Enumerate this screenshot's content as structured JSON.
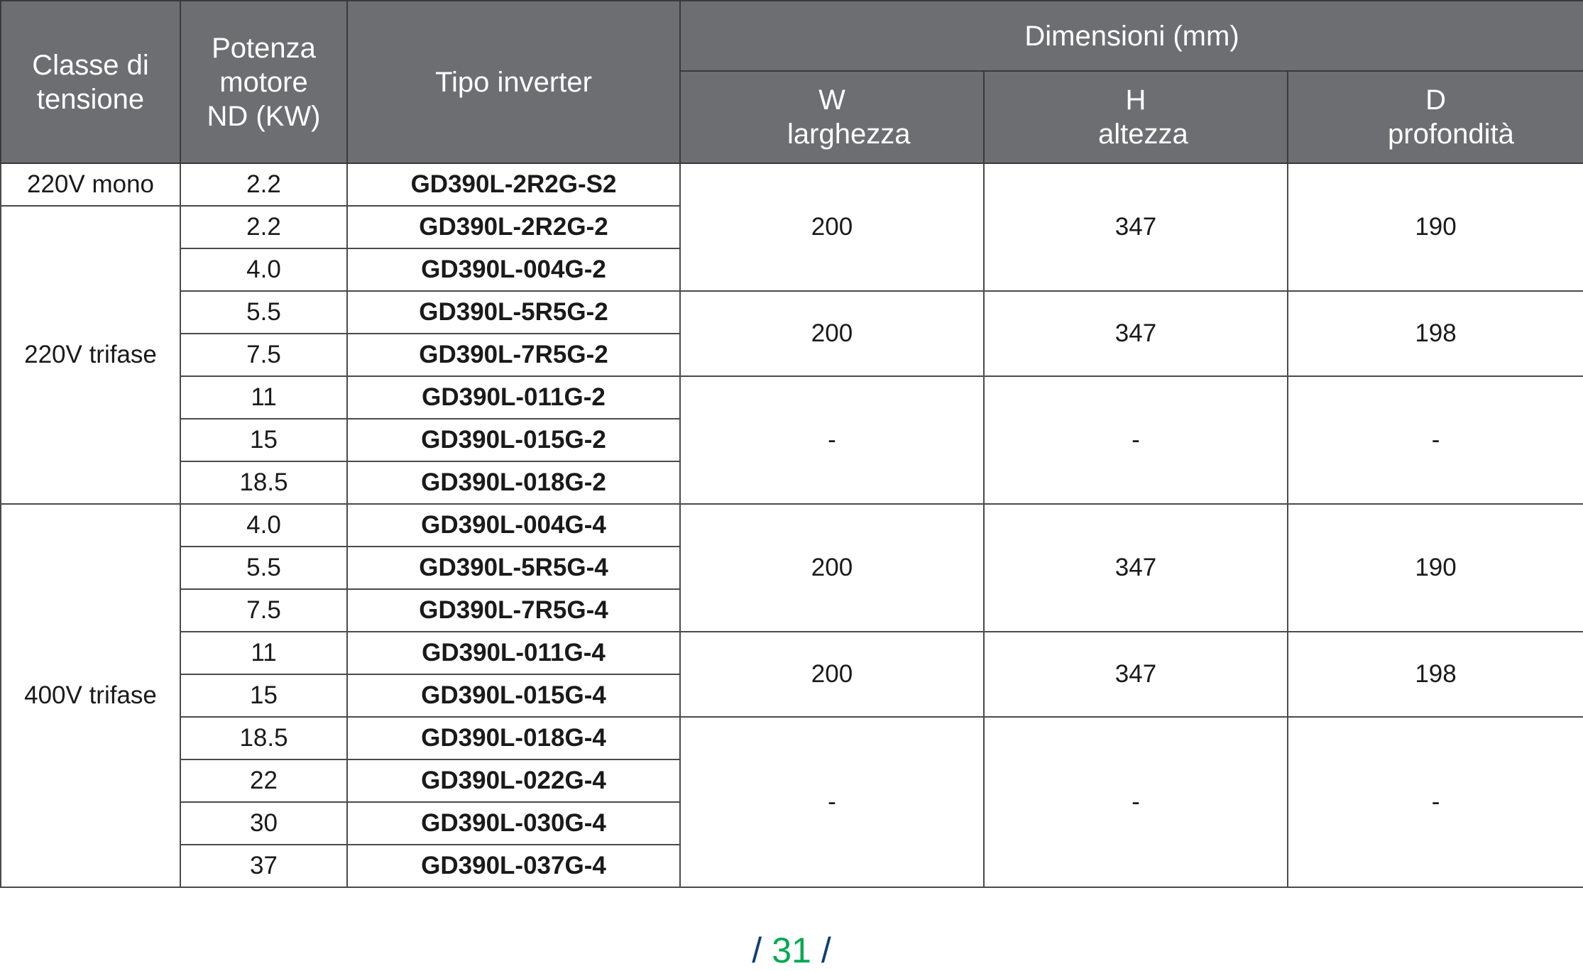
{
  "header": {
    "voltage_class": "Classe di tensione",
    "motor_power": "Potenza motore ND (KW)",
    "inverter_type": "Tipo inverter",
    "dimensions": "Dimensioni (mm)",
    "w": "W larghezza",
    "h": "H altezza",
    "d": "D profondità"
  },
  "voltage_groups": [
    {
      "label": "220V mono",
      "rows": 1
    },
    {
      "label": "220V trifase",
      "rows": 7
    },
    {
      "label": "400V trifase",
      "rows": 9
    }
  ],
  "rows": [
    {
      "power": "2.2",
      "model": "GD390L-2R2G-S2"
    },
    {
      "power": "2.2",
      "model": "GD390L-2R2G-2"
    },
    {
      "power": "4.0",
      "model": "GD390L-004G-2"
    },
    {
      "power": "5.5",
      "model": "GD390L-5R5G-2"
    },
    {
      "power": "7.5",
      "model": "GD390L-7R5G-2"
    },
    {
      "power": "11",
      "model": "GD390L-011G-2"
    },
    {
      "power": "15",
      "model": "GD390L-015G-2"
    },
    {
      "power": "18.5",
      "model": "GD390L-018G-2"
    },
    {
      "power": "4.0",
      "model": "GD390L-004G-4"
    },
    {
      "power": "5.5",
      "model": "GD390L-5R5G-4"
    },
    {
      "power": "7.5",
      "model": "GD390L-7R5G-4"
    },
    {
      "power": "11",
      "model": "GD390L-011G-4"
    },
    {
      "power": "15",
      "model": "GD390L-015G-4"
    },
    {
      "power": "18.5",
      "model": "GD390L-018G-4"
    },
    {
      "power": "22",
      "model": "GD390L-022G-4"
    },
    {
      "power": "30",
      "model": "GD390L-030G-4"
    },
    {
      "power": "37",
      "model": "GD390L-037G-4"
    }
  ],
  "dimension_groups": [
    {
      "rows": 3,
      "w": "200",
      "h": "347",
      "d": "190"
    },
    {
      "rows": 2,
      "w": "200",
      "h": "347",
      "d": "198"
    },
    {
      "rows": 3,
      "w": "-",
      "h": "-",
      "d": "-"
    },
    {
      "rows": 3,
      "w": "200",
      "h": "347",
      "d": "190"
    },
    {
      "rows": 2,
      "w": "200",
      "h": "347",
      "d": "198"
    },
    {
      "rows": 4,
      "w": "-",
      "h": "-",
      "d": "-"
    }
  ],
  "page_number": "31",
  "page_separator": "/",
  "colors": {
    "header_bg": "#6d6e71",
    "page_number": "#00a94f",
    "page_slash": "#0b4078"
  }
}
